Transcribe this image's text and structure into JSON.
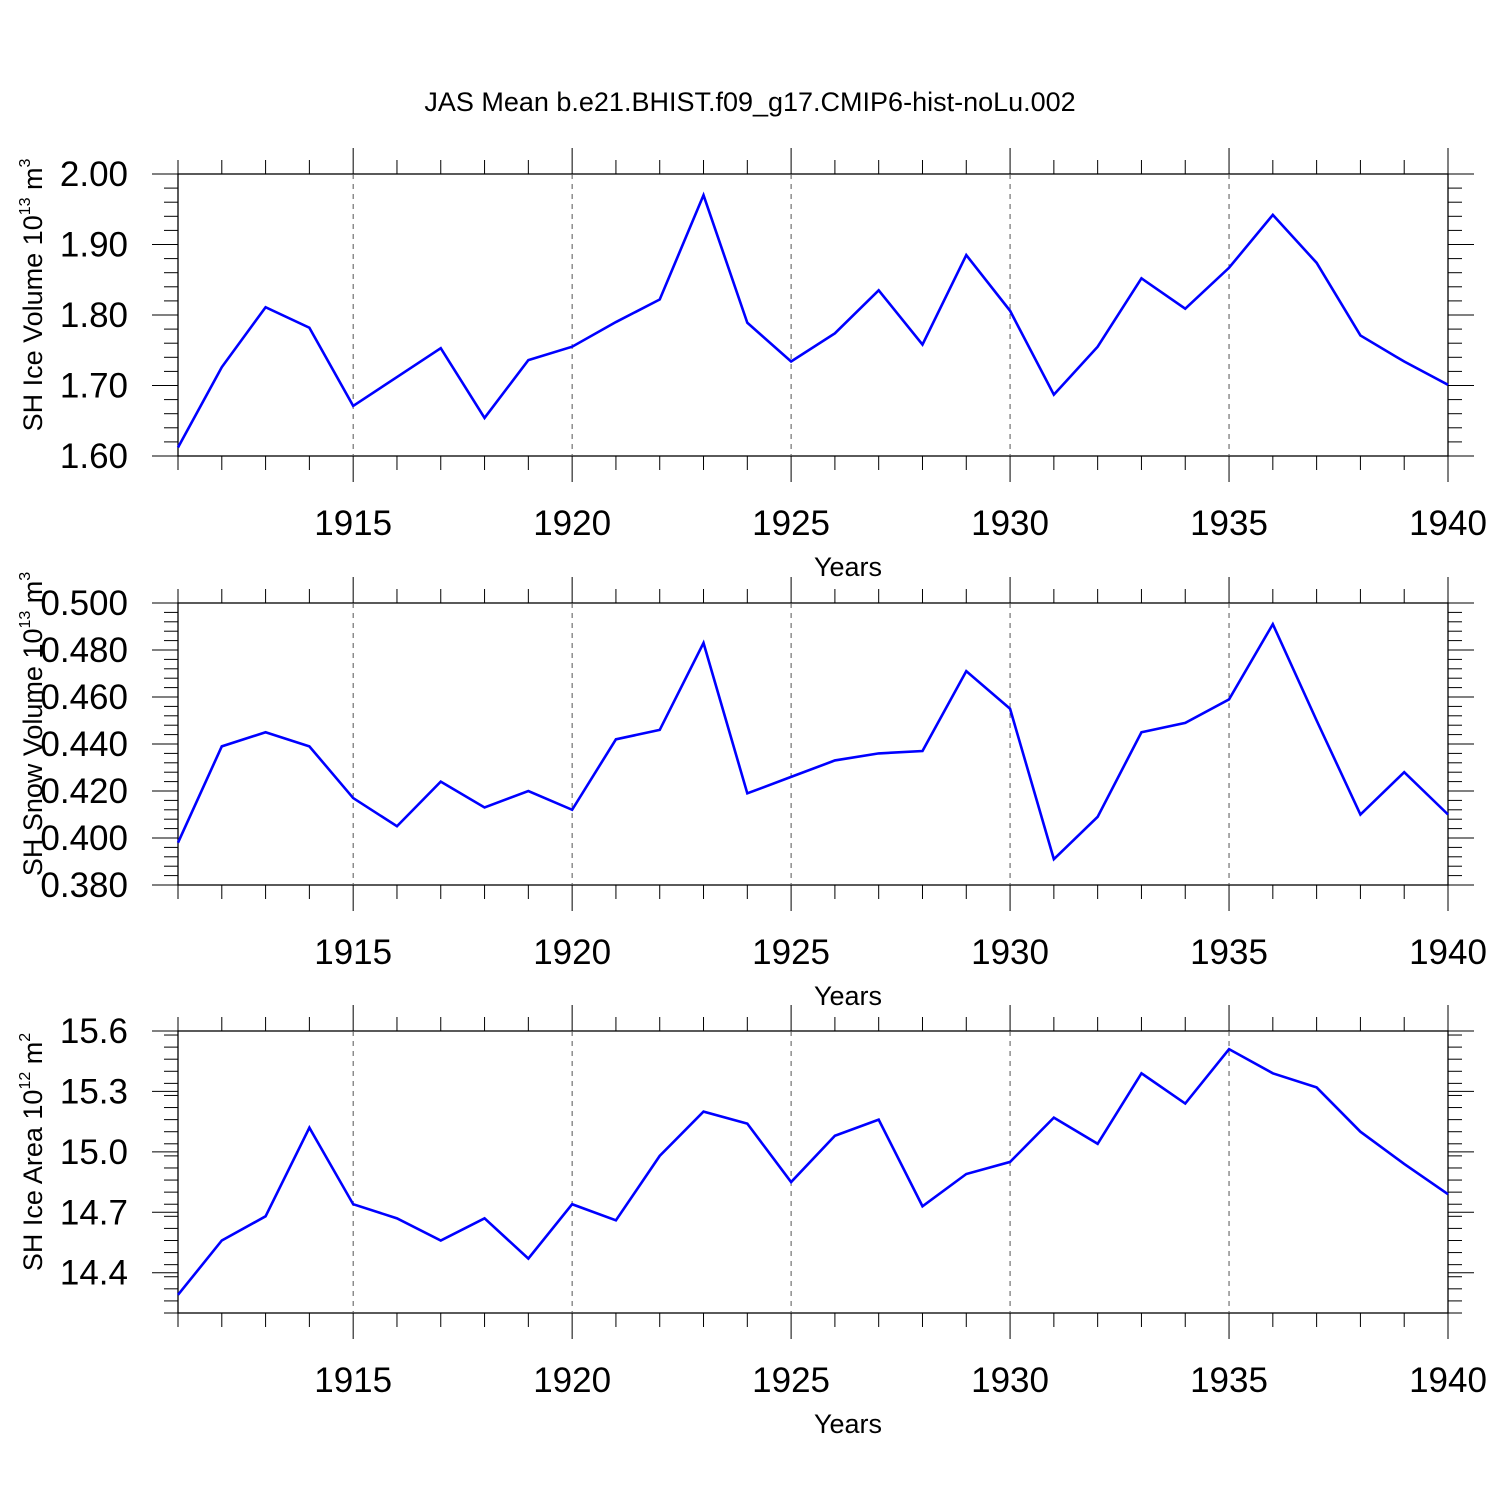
{
  "figure_title": "JAS Mean b.e21.BHIST.f09_g17.CMIP6-hist-noLu.002",
  "colors": {
    "line": "#0000ff",
    "axis": "#000000",
    "grid": "#555555"
  },
  "chart_data": [
    {
      "type": "line",
      "title": "JAS Mean b.e21.BHIST.f09_g17.CMIP6-hist-noLu.002",
      "xlabel": "Years",
      "ylabel": {
        "text": "SH Ice Volume 10",
        "exp": "13",
        "unit": " m",
        "unit_exp": "3"
      },
      "xlim": [
        1911,
        1940
      ],
      "ylim": [
        1.6,
        2.0
      ],
      "x_ticks": [
        "1915",
        "1920",
        "1925",
        "1930",
        "1935",
        "1940"
      ],
      "y_ticks": [
        "1.60",
        "1.70",
        "1.80",
        "1.90",
        "2.00"
      ],
      "y_minor_step": 0.02,
      "grid": "dashed vertical at major x ticks",
      "x": [
        1911,
        1912,
        1913,
        1914,
        1915,
        1916,
        1917,
        1918,
        1919,
        1920,
        1921,
        1922,
        1923,
        1924,
        1925,
        1926,
        1927,
        1928,
        1929,
        1930,
        1931,
        1932,
        1933,
        1934,
        1935,
        1936,
        1937,
        1938,
        1939,
        1940
      ],
      "series": [
        {
          "name": "SH Ice Volume",
          "values": [
            1.612,
            1.726,
            1.811,
            1.782,
            1.671,
            1.712,
            1.753,
            1.654,
            1.736,
            1.755,
            1.79,
            1.822,
            1.97,
            1.789,
            1.734,
            1.774,
            1.835,
            1.758,
            1.885,
            1.806,
            1.687,
            1.755,
            1.852,
            1.809,
            1.867,
            1.942,
            1.874,
            1.771,
            1.734,
            1.701
          ]
        }
      ]
    },
    {
      "type": "line",
      "xlabel": "Years",
      "ylabel": {
        "text": "SH Snow Volume 10",
        "exp": "13",
        "unit": " m",
        "unit_exp": "3"
      },
      "xlim": [
        1911,
        1940
      ],
      "ylim": [
        0.38,
        0.5
      ],
      "x_ticks": [
        "1915",
        "1920",
        "1925",
        "1930",
        "1935",
        "1940"
      ],
      "y_ticks": [
        "0.380",
        "0.400",
        "0.420",
        "0.440",
        "0.460",
        "0.480",
        "0.500"
      ],
      "y_minor_step": 0.004,
      "grid": "dashed vertical at major x ticks",
      "x": [
        1911,
        1912,
        1913,
        1914,
        1915,
        1916,
        1917,
        1918,
        1919,
        1920,
        1921,
        1922,
        1923,
        1924,
        1925,
        1926,
        1927,
        1928,
        1929,
        1930,
        1931,
        1932,
        1933,
        1934,
        1935,
        1936,
        1937,
        1938,
        1939,
        1940
      ],
      "series": [
        {
          "name": "SH Snow Volume",
          "values": [
            0.398,
            0.439,
            0.445,
            0.439,
            0.417,
            0.405,
            0.424,
            0.413,
            0.42,
            0.412,
            0.442,
            0.446,
            0.483,
            0.419,
            0.426,
            0.433,
            0.436,
            0.437,
            0.471,
            0.455,
            0.391,
            0.409,
            0.445,
            0.449,
            0.459,
            0.491,
            0.45,
            0.41,
            0.428,
            0.41
          ]
        }
      ]
    },
    {
      "type": "line",
      "xlabel": "Years",
      "ylabel": {
        "text": "SH Ice Area 10",
        "exp": "12",
        "unit": " m",
        "unit_exp": "2"
      },
      "xlim": [
        1911,
        1940
      ],
      "ylim": [
        14.2,
        15.6
      ],
      "x_ticks": [
        "1915",
        "1920",
        "1925",
        "1930",
        "1935",
        "1940"
      ],
      "y_ticks": [
        "14.4",
        "14.7",
        "15.0",
        "15.3",
        "15.6"
      ],
      "y_minor_step": 0.06,
      "grid": "dashed vertical at major x ticks",
      "x": [
        1911,
        1912,
        1913,
        1914,
        1915,
        1916,
        1917,
        1918,
        1919,
        1920,
        1921,
        1922,
        1923,
        1924,
        1925,
        1926,
        1927,
        1928,
        1929,
        1930,
        1931,
        1932,
        1933,
        1934,
        1935,
        1936,
        1937,
        1938,
        1939,
        1940
      ],
      "series": [
        {
          "name": "SH Ice Area",
          "values": [
            14.29,
            14.56,
            14.68,
            15.12,
            14.74,
            14.67,
            14.56,
            14.67,
            14.47,
            14.74,
            14.66,
            14.98,
            15.2,
            15.14,
            14.85,
            15.08,
            15.16,
            14.73,
            14.89,
            14.95,
            15.17,
            15.04,
            15.39,
            15.24,
            15.51,
            15.39,
            15.32,
            15.1,
            14.94,
            14.79
          ]
        }
      ]
    }
  ]
}
